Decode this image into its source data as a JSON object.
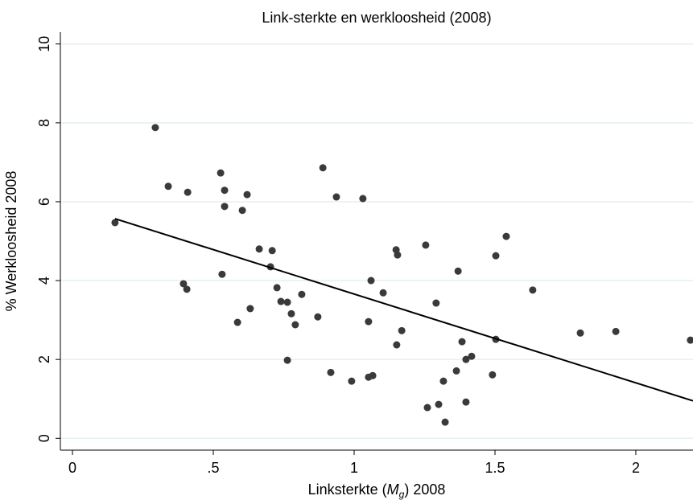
{
  "chart_data": {
    "type": "scatter",
    "title": "Link-sterkte en werkloosheid (2008)",
    "xlabel_parts": [
      "Linksterkte (",
      "M",
      "g",
      ") 2008"
    ],
    "ylabel": "% Werkloosheid 2008",
    "x": [
      0.151,
      0.294,
      0.34,
      0.409,
      0.394,
      0.406,
      0.526,
      0.54,
      0.54,
      0.531,
      0.62,
      0.603,
      0.586,
      0.631,
      0.663,
      0.709,
      0.703,
      0.726,
      0.74,
      0.763,
      0.777,
      0.791,
      0.763,
      0.814,
      0.871,
      0.889,
      0.937,
      0.917,
      0.991,
      1.031,
      1.06,
      1.103,
      1.051,
      1.051,
      1.066,
      1.149,
      1.154,
      1.169,
      1.151,
      1.254,
      1.291,
      1.26,
      1.3,
      1.317,
      1.323,
      1.369,
      1.383,
      1.397,
      1.417,
      1.363,
      1.397,
      1.491,
      1.503,
      1.503,
      1.54,
      1.634,
      1.803,
      1.929,
      2.194
    ],
    "values": [
      5.47,
      7.88,
      6.39,
      6.24,
      3.92,
      3.78,
      6.73,
      6.29,
      5.88,
      4.16,
      6.18,
      5.78,
      2.94,
      3.29,
      4.8,
      4.76,
      4.35,
      3.82,
      3.47,
      3.45,
      3.16,
      2.88,
      1.98,
      3.65,
      3.08,
      6.86,
      6.12,
      1.67,
      1.45,
      6.08,
      4.0,
      3.69,
      2.96,
      1.55,
      1.59,
      4.78,
      4.65,
      2.73,
      2.37,
      4.9,
      3.43,
      0.78,
      0.86,
      1.45,
      0.41,
      4.24,
      2.45,
      2.0,
      2.08,
      1.71,
      0.92,
      1.61,
      4.63,
      2.51,
      5.12,
      3.76,
      2.67,
      2.71,
      2.49
    ],
    "color": "#3a3a3a",
    "fit_line": {
      "x": [
        0.151,
        2.203
      ],
      "values": [
        5.57,
        0.95
      ],
      "color": "#000000"
    },
    "xlim": [
      -0.043,
      2.203
    ],
    "ylim": [
      -0.3,
      10.3
    ],
    "xticks": [
      0,
      {
        "value": 0.5,
        "label": ".5"
      },
      1,
      1.5,
      2
    ],
    "yticks": [
      0,
      2,
      4,
      6,
      8,
      10
    ],
    "grid": true
  }
}
